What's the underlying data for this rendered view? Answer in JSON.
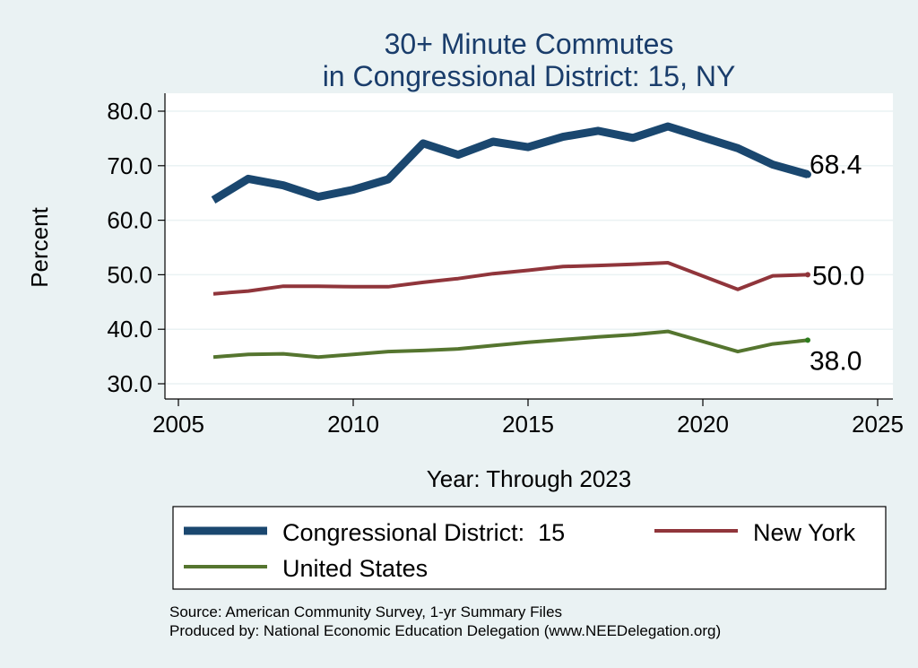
{
  "chart_data": {
    "type": "line",
    "title_line1": "30+ Minute Commutes",
    "title_line2": "in Congressional District:  15, NY",
    "xlabel": "Year: Through 2023",
    "ylabel": "Percent",
    "xlim": [
      2005,
      2025
    ],
    "ylim": [
      30,
      80
    ],
    "x_ticks": [
      2005,
      2010,
      2015,
      2020,
      2025
    ],
    "x_tick_labels": [
      "2005",
      "2010",
      "2015",
      "2020",
      "2025"
    ],
    "y_ticks": [
      30,
      40,
      50,
      60,
      70,
      80
    ],
    "y_tick_labels": [
      "30.0",
      "40.0",
      "50.0",
      "60.0",
      "70.0",
      "80.0"
    ],
    "grid": true,
    "x": [
      2006,
      2007,
      2008,
      2009,
      2010,
      2011,
      2012,
      2013,
      2014,
      2015,
      2016,
      2017,
      2018,
      2019,
      2021,
      2022,
      2023
    ],
    "series": [
      {
        "name": "Congressional District:  15",
        "color": "#1a476f",
        "values": [
          63.7,
          67.6,
          66.4,
          64.3,
          65.6,
          67.5,
          74.1,
          72.0,
          74.4,
          73.4,
          75.3,
          76.4,
          75.1,
          77.2,
          73.2,
          70.2,
          68.4
        ],
        "end_label": "68.4"
      },
      {
        "name": "New York",
        "color": "#90353b",
        "values": [
          46.5,
          47.0,
          47.9,
          47.9,
          47.8,
          47.8,
          48.6,
          49.3,
          50.2,
          50.8,
          51.5,
          51.7,
          51.9,
          52.2,
          47.3,
          49.8,
          50.0
        ],
        "end_label": "50.0"
      },
      {
        "name": "United States",
        "color": "#55752f",
        "values": [
          34.9,
          35.4,
          35.5,
          34.9,
          35.4,
          35.9,
          36.1,
          36.4,
          37.0,
          37.6,
          38.1,
          38.6,
          39.0,
          39.6,
          35.9,
          37.3,
          38.0
        ],
        "end_label": "38.0"
      }
    ],
    "legend_position": "bottom"
  },
  "source_line1": "Source: American Community Survey, 1-yr Summary Files",
  "source_line2": "Produced by: National Economic Education Delegation (www.NEEDelegation.org)"
}
